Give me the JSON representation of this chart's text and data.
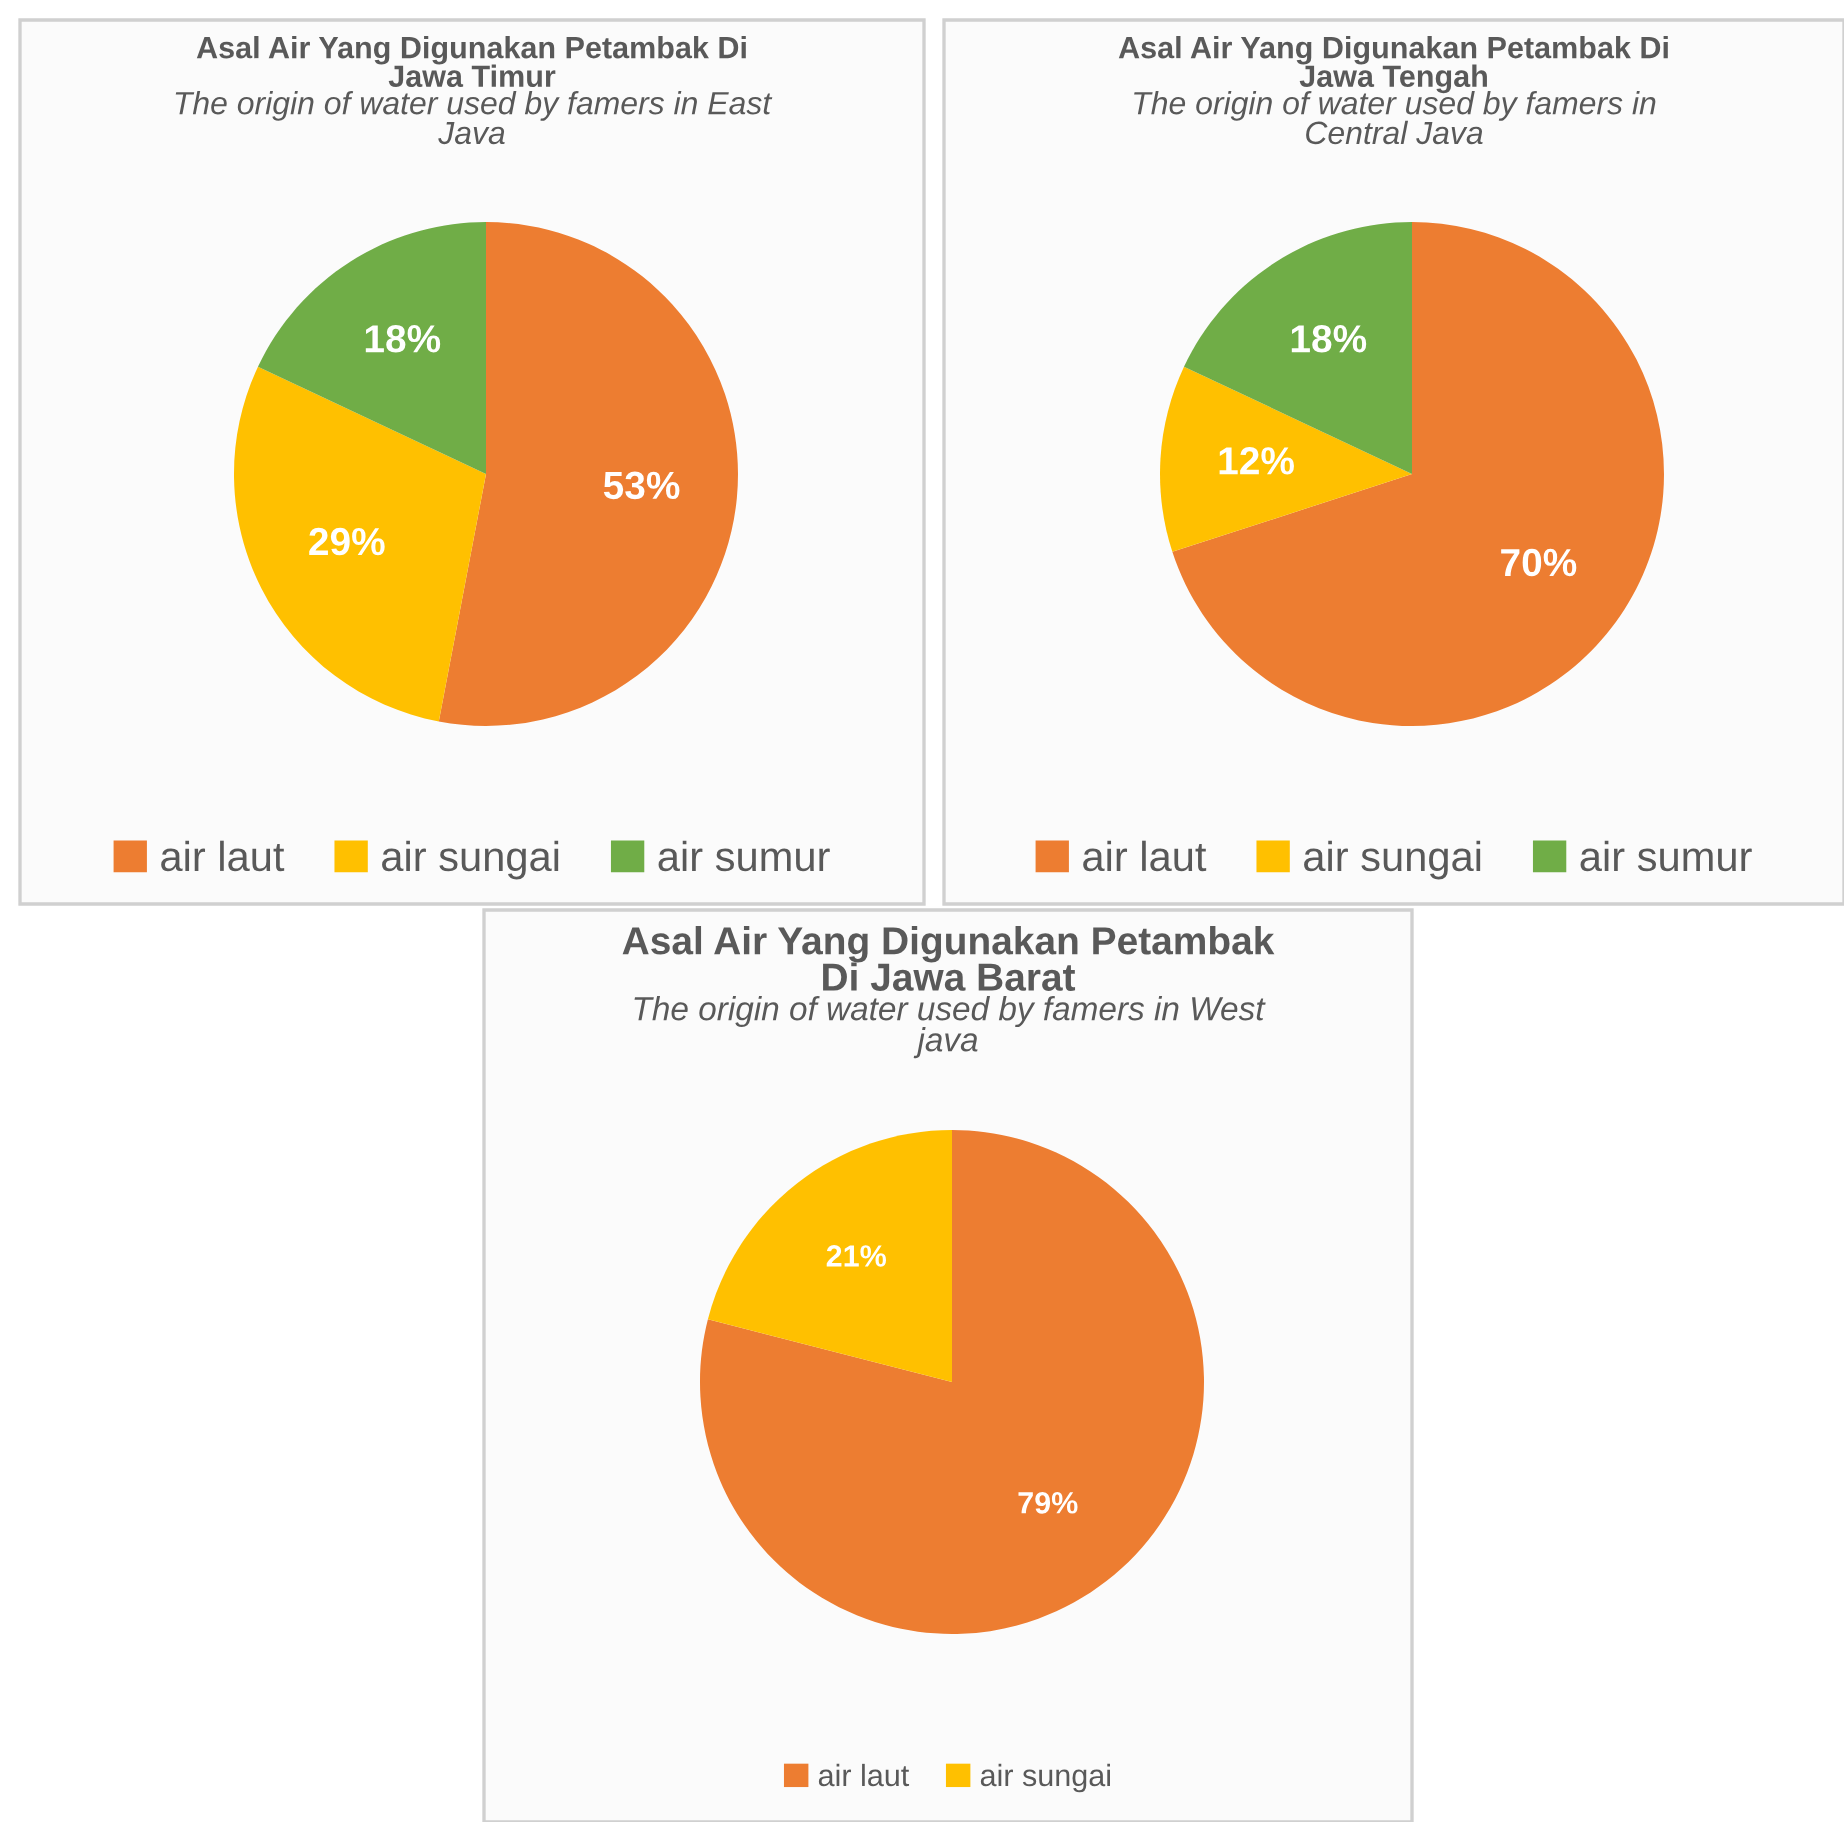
{
  "chart_data": [
    {
      "type": "pie",
      "title": "Asal Air Yang Digunakan Petambak Di Jawa Timur",
      "subtitle": "The origin of water used by famers in East Java",
      "categories": [
        "air laut",
        "air sungai",
        "air sumur"
      ],
      "values": [
        53,
        29,
        18
      ],
      "value_labels": [
        "53%",
        "29%",
        "18%"
      ],
      "colors": [
        "#ed7d31",
        "#ffc000",
        "#70ad47"
      ],
      "legend": "bottom"
    },
    {
      "type": "pie",
      "title": "Asal Air Yang Digunakan Petambak Di Jawa Tengah",
      "subtitle": "The origin of water used by famers in Central Java",
      "categories": [
        "air laut",
        "air sungai",
        "air sumur"
      ],
      "values": [
        70,
        12,
        18
      ],
      "value_labels": [
        "70%",
        "12%",
        "18%"
      ],
      "colors": [
        "#ed7d31",
        "#ffc000",
        "#70ad47"
      ],
      "legend": "bottom"
    },
    {
      "type": "pie",
      "title": "Asal Air Yang Digunakan Petambak Di Jawa Barat",
      "subtitle": "The origin of water used by famers in West java",
      "categories": [
        "air laut",
        "air sungai"
      ],
      "values": [
        79,
        21
      ],
      "value_labels": [
        "79%",
        "21%"
      ],
      "colors": [
        "#ed7d31",
        "#ffc000"
      ],
      "legend": "bottom"
    }
  ]
}
